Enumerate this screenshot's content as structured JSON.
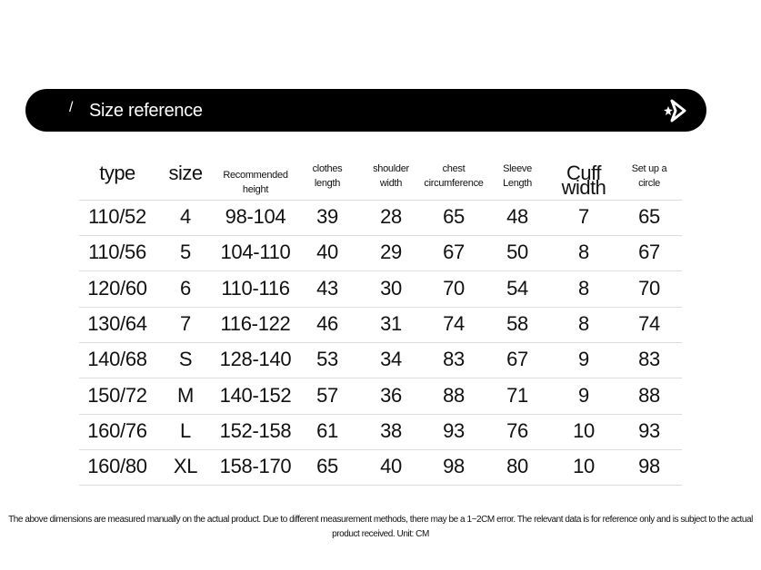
{
  "header": {
    "title": "Size reference"
  },
  "table": {
    "columns": [
      "type",
      "size",
      "Recommended height",
      "clothes length",
      "shoulder width",
      "chest circumference",
      "Sleeve Length",
      "Cuff width",
      "Set up a circle"
    ],
    "rows": [
      [
        "110/52",
        "4",
        "98-104",
        "39",
        "28",
        "65",
        "48",
        "7",
        "65"
      ],
      [
        "110/56",
        "5",
        "104-110",
        "40",
        "29",
        "67",
        "50",
        "8",
        "67"
      ],
      [
        "120/60",
        "6",
        "110-116",
        "43",
        "30",
        "70",
        "54",
        "8",
        "70"
      ],
      [
        "130/64",
        "7",
        "116-122",
        "46",
        "31",
        "74",
        "58",
        "8",
        "74"
      ],
      [
        "140/68",
        "S",
        "128-140",
        "53",
        "34",
        "83",
        "67",
        "9",
        "83"
      ],
      [
        "150/72",
        "M",
        "140-152",
        "57",
        "36",
        "88",
        "71",
        "9",
        "88"
      ],
      [
        "160/76",
        "L",
        "152-158",
        "61",
        "38",
        "93",
        "76",
        "10",
        "93"
      ],
      [
        "160/80",
        "XL",
        "158-170",
        "65",
        "40",
        "98",
        "80",
        "10",
        "98"
      ]
    ]
  },
  "footnote": "The above dimensions are measured manually on the actual product. Due to different measurement methods, there may be a 1~2CM error. The relevant data is for reference only and is subject to the actual product received. Unit: CM"
}
